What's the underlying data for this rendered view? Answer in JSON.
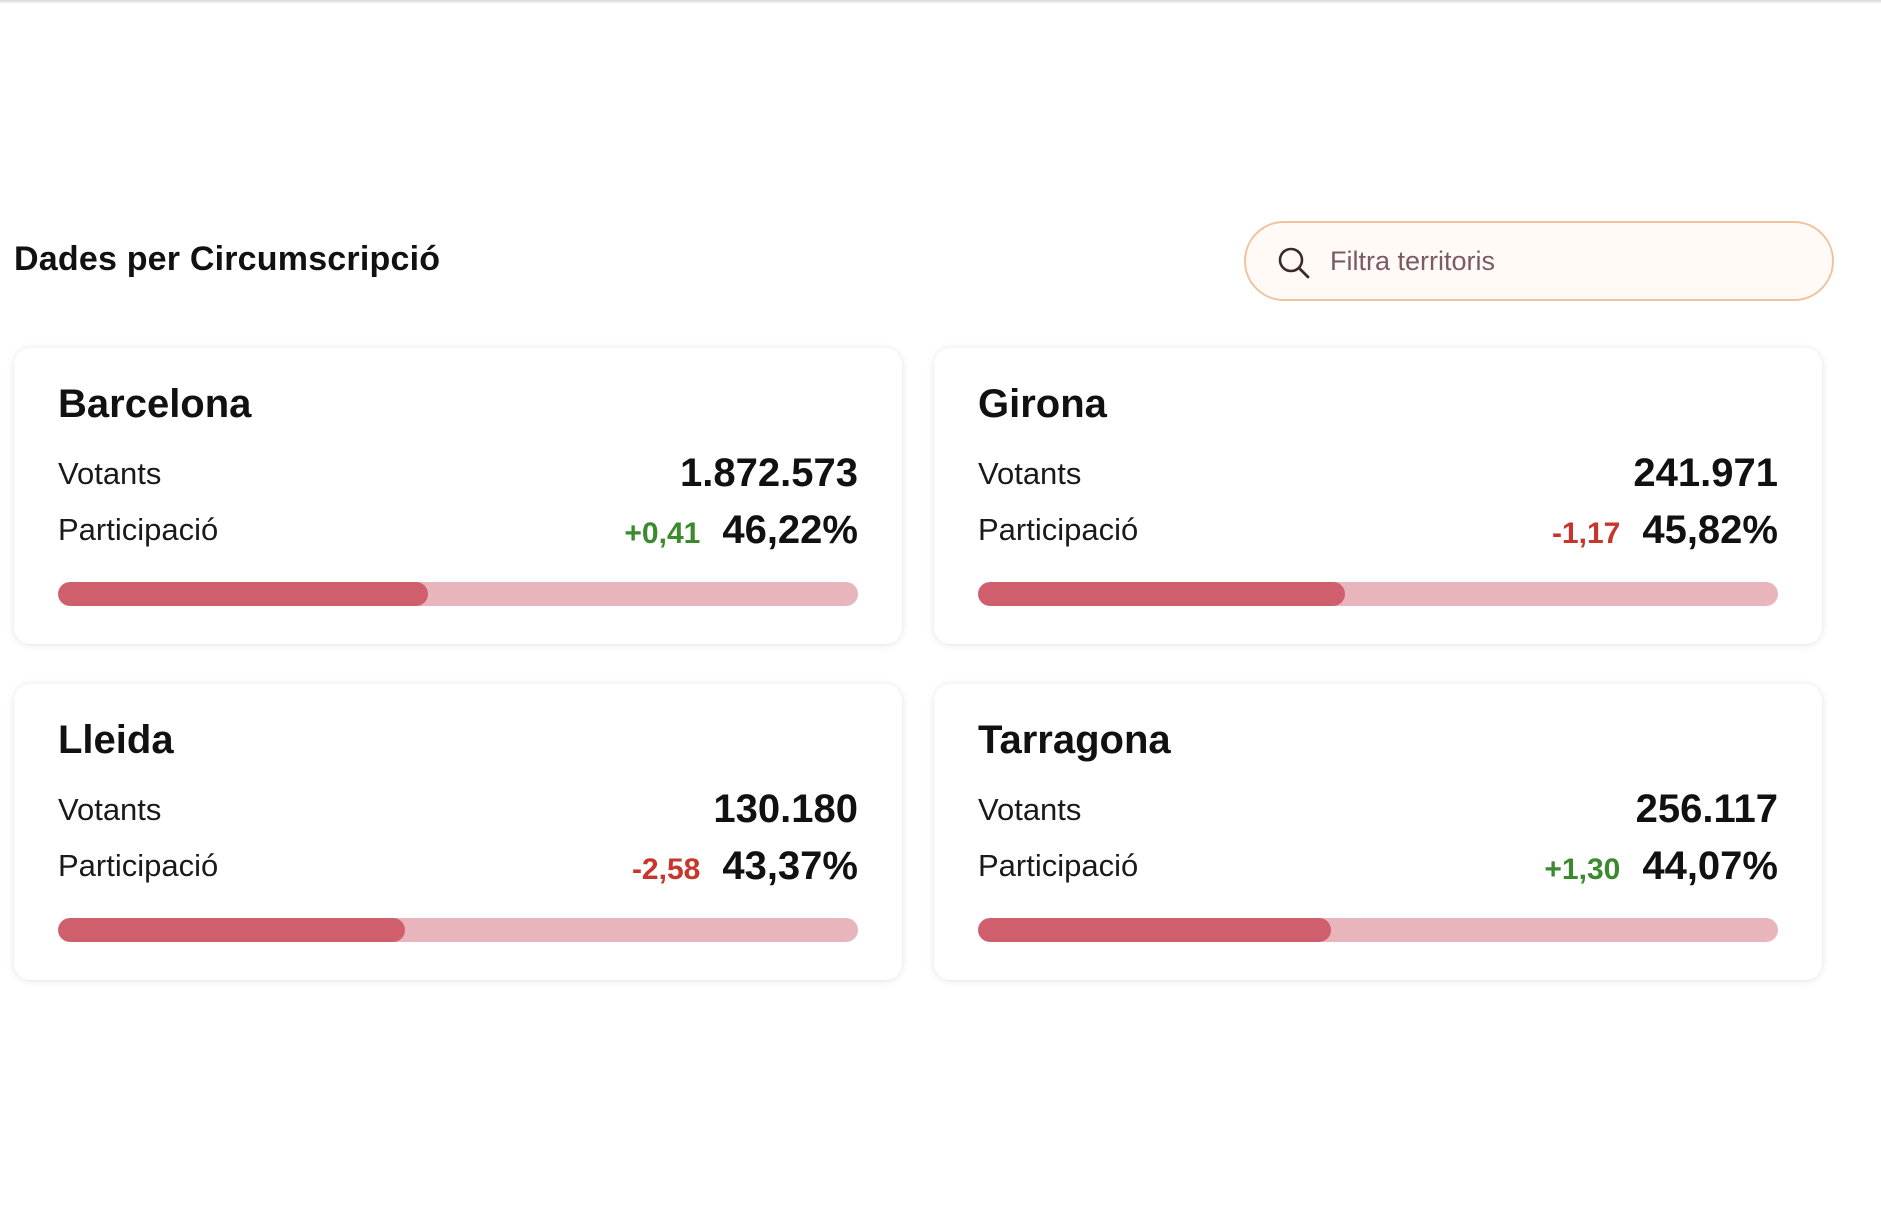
{
  "section": {
    "title": "Dades per Circumscripció"
  },
  "search": {
    "placeholder": "Filtra territoris",
    "value": ""
  },
  "colors": {
    "bar_fill": "#d05f6e",
    "bar_track": "#e8b5bc",
    "positive": "#3b8a2e",
    "negative": "#c8352a",
    "search_border": "#f0c3a0"
  },
  "cards": [
    {
      "name": "Barcelona",
      "votants_label": "Votants",
      "votants": "1.872.573",
      "participacio_label": "Participació",
      "delta": "+0,41",
      "delta_sign": "pos",
      "participacio": "46,22%",
      "progress_pct": 46.22
    },
    {
      "name": "Girona",
      "votants_label": "Votants",
      "votants": "241.971",
      "participacio_label": "Participació",
      "delta": "-1,17",
      "delta_sign": "neg",
      "participacio": "45,82%",
      "progress_pct": 45.82
    },
    {
      "name": "Lleida",
      "votants_label": "Votants",
      "votants": "130.180",
      "participacio_label": "Participació",
      "delta": "-2,58",
      "delta_sign": "neg",
      "participacio": "43,37%",
      "progress_pct": 43.37
    },
    {
      "name": "Tarragona",
      "votants_label": "Votants",
      "votants": "256.117",
      "participacio_label": "Participació",
      "delta": "+1,30",
      "delta_sign": "pos",
      "participacio": "44,07%",
      "progress_pct": 44.07
    }
  ]
}
